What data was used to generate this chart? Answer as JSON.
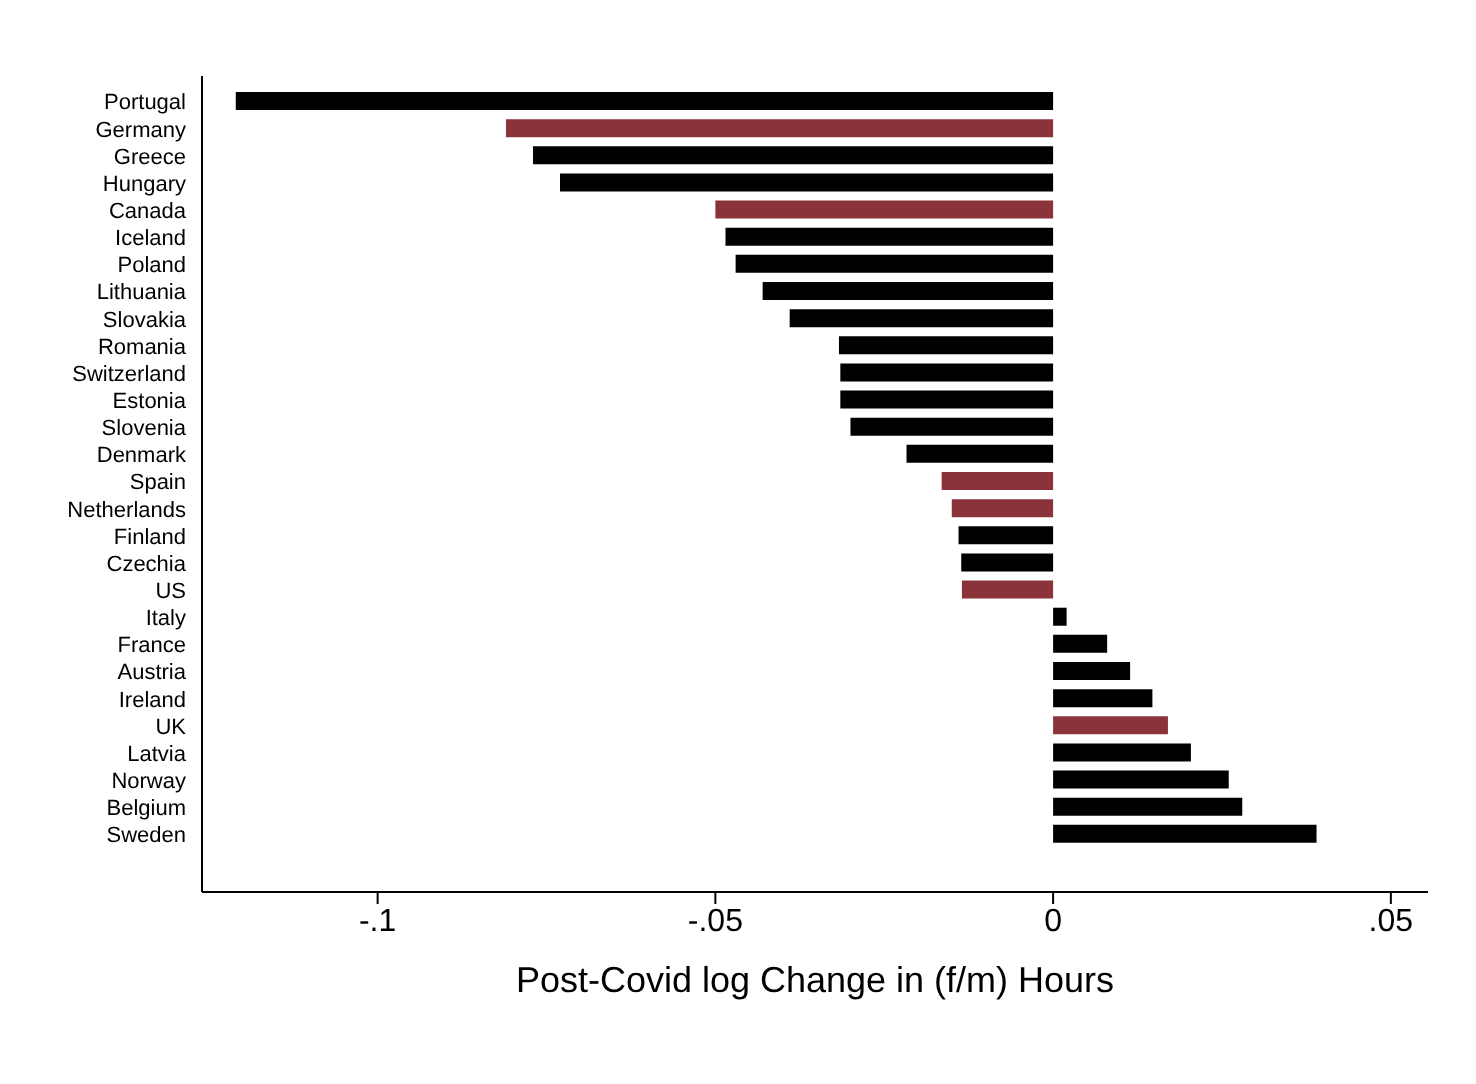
{
  "chart_data": {
    "type": "bar",
    "orientation": "horizontal",
    "xlabel": "Post-Covid log Change in (f/m) Hours",
    "categories": [
      "Portugal",
      "Germany",
      "Greece",
      "Hungary",
      "Canada",
      "Iceland",
      "Poland",
      "Lithuania",
      "Slovakia",
      "Romania",
      "Switzerland",
      "Estonia",
      "Slovenia",
      "Denmark",
      "Spain",
      "Netherlands",
      "Finland",
      "Czechia",
      "US",
      "Italy",
      "France",
      "Austria",
      "Ireland",
      "UK",
      "Latvia",
      "Norway",
      "Belgium",
      "Sweden"
    ],
    "values": [
      -0.121,
      -0.081,
      -0.077,
      -0.073,
      -0.05,
      -0.0485,
      -0.047,
      -0.043,
      -0.039,
      -0.0317,
      -0.0315,
      -0.0315,
      -0.03,
      -0.0217,
      -0.0165,
      -0.015,
      -0.014,
      -0.0136,
      -0.0135,
      0.002,
      0.008,
      0.0114,
      0.0147,
      0.017,
      0.0204,
      0.026,
      0.028,
      0.039
    ],
    "colors": [
      "#000000",
      "#8b333b",
      "#000000",
      "#000000",
      "#8b333b",
      "#000000",
      "#000000",
      "#000000",
      "#000000",
      "#000000",
      "#000000",
      "#000000",
      "#000000",
      "#000000",
      "#8b333b",
      "#8b333b",
      "#000000",
      "#000000",
      "#8b333b",
      "#000000",
      "#000000",
      "#000000",
      "#000000",
      "#8b333b",
      "#000000",
      "#000000",
      "#000000",
      "#000000"
    ],
    "xlim": [
      -0.126,
      0.0555
    ],
    "xticks": [
      {
        "value": -0.1,
        "label": "-.1"
      },
      {
        "value": -0.05,
        "label": "-.05"
      },
      0,
      {
        "value": 0.05,
        "label": ".05"
      }
    ],
    "grid": false,
    "legend": false
  }
}
